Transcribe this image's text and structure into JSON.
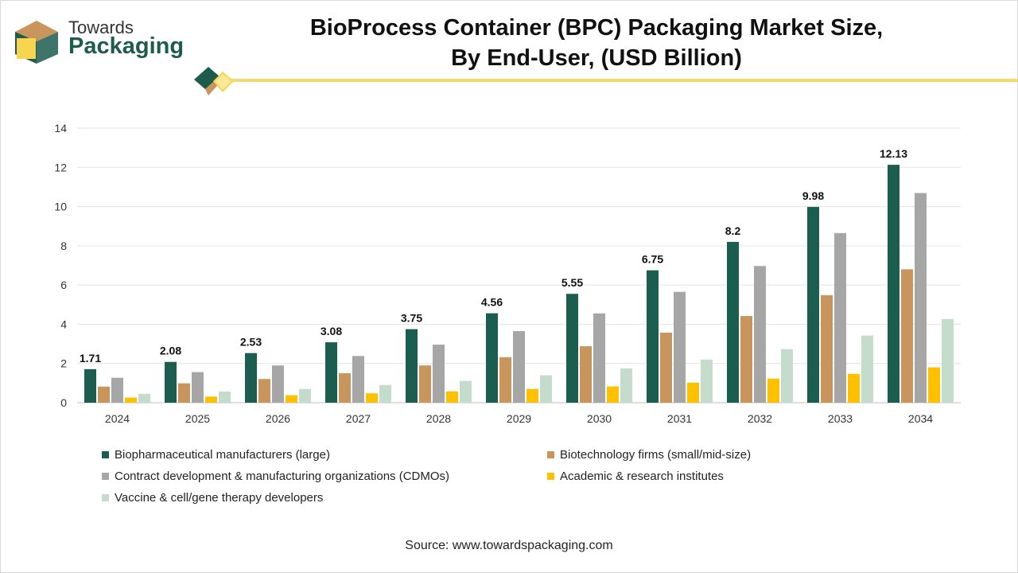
{
  "logo": {
    "line1": "Towards",
    "line2": "Packaging"
  },
  "title_line1": "BioProcess Container (BPC) Packaging Market Size,",
  "title_line2": "By End-User, (USD Billion)",
  "source": "Source: www.towardspackaging.com",
  "colors": {
    "accent_yellow": "#f5d76e",
    "brand_green": "#1d5c4d",
    "brand_tan": "#c8955c"
  },
  "chart_data": {
    "type": "bar",
    "title": "BioProcess Container (BPC) Packaging Market Size, By End-User, (USD Billion)",
    "xlabel": "",
    "ylabel": "",
    "ylim": [
      0,
      14
    ],
    "yticks": [
      0,
      2,
      4,
      6,
      8,
      10,
      12,
      14
    ],
    "grid": true,
    "legend_position": "bottom",
    "categories": [
      "2024",
      "2025",
      "2026",
      "2027",
      "2028",
      "2029",
      "2030",
      "2031",
      "2032",
      "2033",
      "2034"
    ],
    "series": [
      {
        "name": "Biopharmaceutical manufacturers (large)",
        "color": "#1b5e4f",
        "values": [
          1.71,
          2.08,
          2.53,
          3.08,
          3.75,
          4.56,
          5.55,
          6.75,
          8.2,
          9.98,
          12.13
        ],
        "labels": [
          "1.71",
          "2.08",
          "2.53",
          "3.08",
          "3.75",
          "4.56",
          "5.55",
          "6.75",
          "8.2",
          "9.98",
          "12.13"
        ]
      },
      {
        "name": "Biotechnology firms (small/mid-size)",
        "color": "#c8955c",
        "values": [
          0.82,
          0.99,
          1.21,
          1.5,
          1.9,
          2.32,
          2.88,
          3.57,
          4.42,
          5.48,
          6.8
        ]
      },
      {
        "name": "Contract development & manufacturing organizations (CDMOs)",
        "color": "#a6a6a6",
        "values": [
          1.27,
          1.56,
          1.9,
          2.38,
          2.96,
          3.65,
          4.55,
          5.65,
          6.97,
          8.65,
          10.69
        ]
      },
      {
        "name": "Academic & research institutes",
        "color": "#ffc000",
        "values": [
          0.26,
          0.31,
          0.38,
          0.48,
          0.58,
          0.7,
          0.83,
          1.02,
          1.23,
          1.47,
          1.8
        ]
      },
      {
        "name": "Vaccine & cell/gene therapy developers",
        "color": "#c5dccd",
        "values": [
          0.45,
          0.57,
          0.7,
          0.9,
          1.11,
          1.4,
          1.75,
          2.2,
          2.73,
          3.42,
          4.27
        ]
      }
    ]
  }
}
